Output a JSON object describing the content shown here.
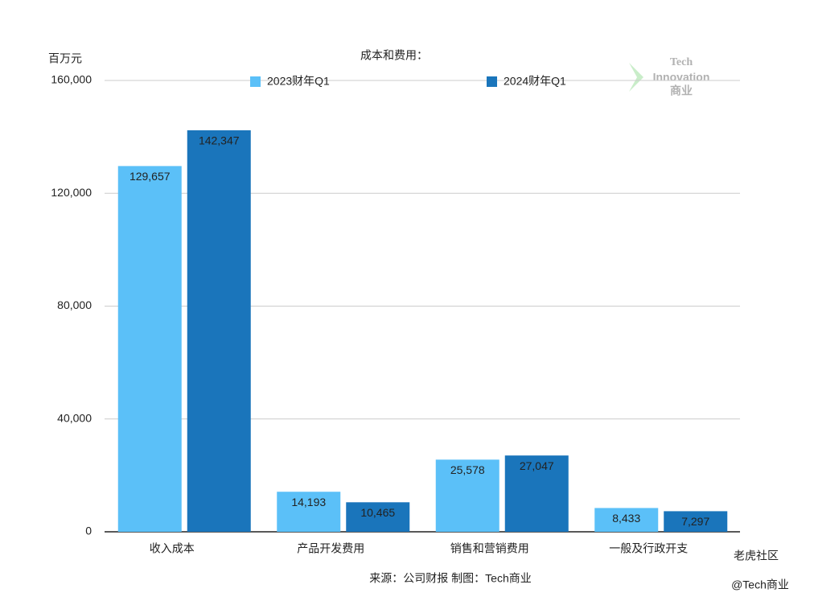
{
  "chart_data": {
    "type": "bar",
    "title": "成本和费用：",
    "y_label": "百万元",
    "categories": [
      "收入成本",
      "产品开发费用",
      "销售和营销费用",
      "一般及行政开支"
    ],
    "series": [
      {
        "name": "2023财年Q1",
        "color": "#5bc0f8",
        "values": [
          129657,
          14193,
          25578,
          8433
        ],
        "value_labels": [
          "129,657",
          "14,193",
          "25,578",
          "8,433"
        ]
      },
      {
        "name": "2024财年Q1",
        "color": "#1a75bb",
        "values": [
          142347,
          10465,
          27047,
          7297
        ],
        "value_labels": [
          "142,347",
          "10,465",
          "27,047",
          "7,297"
        ]
      }
    ],
    "ylim": [
      0,
      160000
    ],
    "yticks": [
      0,
      {
        "value": 40000,
        "label": "40,000"
      },
      {
        "value": 80000,
        "label": "80,000"
      },
      {
        "value": 120000,
        "label": "120,000"
      },
      {
        "value": 160000,
        "label": "160,000"
      }
    ],
    "grid": true,
    "source": "来源：公司财报 制图：Tech商业",
    "watermark": [
      "Tech",
      "Innovation",
      "商业"
    ],
    "overlay": [
      "老虎社区",
      "@Tech商业"
    ]
  }
}
